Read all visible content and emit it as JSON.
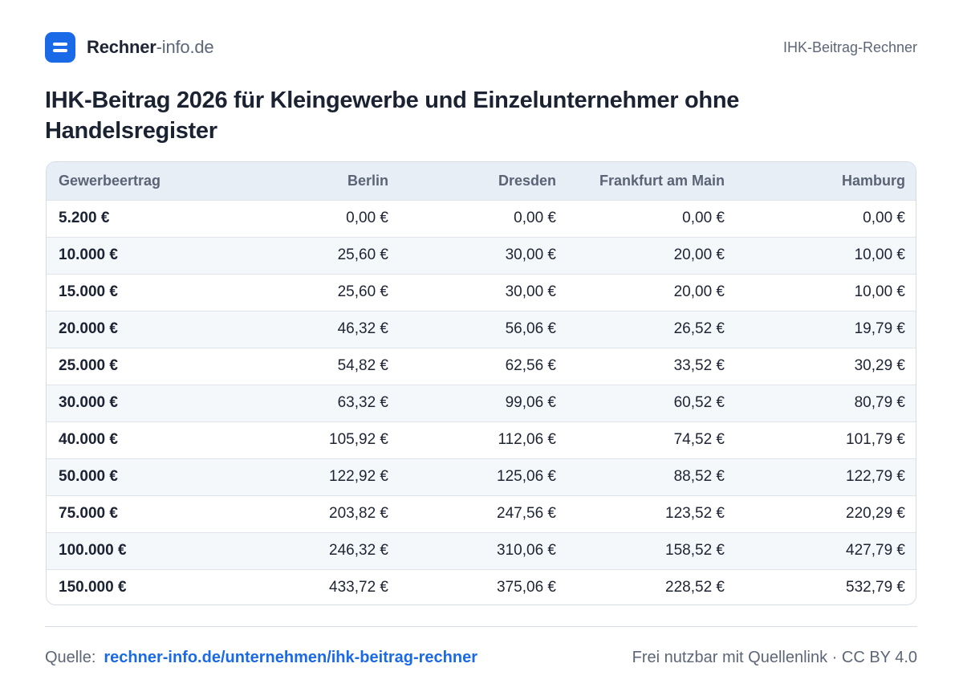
{
  "brand": {
    "name_strong": "Rechner",
    "name_light": "-info.de"
  },
  "top_right": "IHK-Beitrag-Rechner",
  "title": "IHK-Beitrag 2026 für Kleingewerbe und Einzelunternehmer ohne Handelsregister",
  "table": {
    "headers": [
      "Gewerbeertrag",
      "Berlin",
      "Dresden",
      "Frankfurt am Main",
      "Hamburg"
    ],
    "rows": [
      [
        "5.200 €",
        "0,00 €",
        "0,00 €",
        "0,00 €",
        "0,00 €"
      ],
      [
        "10.000 €",
        "25,60 €",
        "30,00 €",
        "20,00 €",
        "10,00 €"
      ],
      [
        "15.000 €",
        "25,60 €",
        "30,00 €",
        "20,00 €",
        "10,00 €"
      ],
      [
        "20.000 €",
        "46,32 €",
        "56,06 €",
        "26,52 €",
        "19,79 €"
      ],
      [
        "25.000 €",
        "54,82 €",
        "62,56 €",
        "33,52 €",
        "30,29 €"
      ],
      [
        "30.000 €",
        "63,32 €",
        "99,06 €",
        "60,52 €",
        "80,79 €"
      ],
      [
        "40.000 €",
        "105,92 €",
        "112,06 €",
        "74,52 €",
        "101,79 €"
      ],
      [
        "50.000 €",
        "122,92 €",
        "125,06 €",
        "88,52 €",
        "122,79 €"
      ],
      [
        "75.000 €",
        "203,82 €",
        "247,56 €",
        "123,52 €",
        "220,29 €"
      ],
      [
        "100.000 €",
        "246,32 €",
        "310,06 €",
        "158,52 €",
        "427,79 €"
      ],
      [
        "150.000 €",
        "433,72 €",
        "375,06 €",
        "228,52 €",
        "532,79 €"
      ]
    ]
  },
  "footer": {
    "source_label": "Quelle:",
    "source_link": "rechner-info.de/unternehmen/ihk-beitrag-rechner",
    "license": "Frei nutzbar mit Quellenlink · CC BY 4.0"
  },
  "colors": {
    "accent": "#1a6ae8",
    "header_bg": "#e8eef6",
    "stripe_bg": "#f5f8fb"
  },
  "icons": {
    "logo": "calculator-logo-icon"
  }
}
